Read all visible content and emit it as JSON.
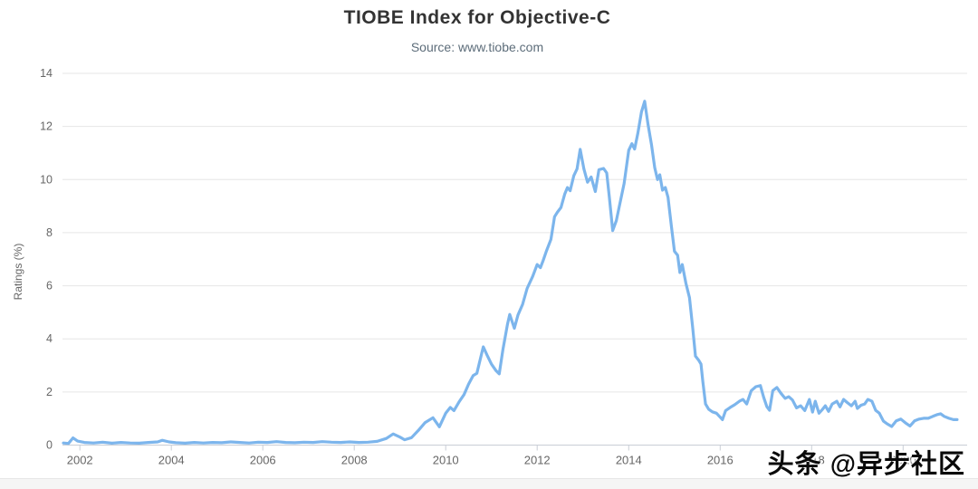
{
  "watermark": {
    "text": "头条 @异步社区"
  },
  "chart_data": {
    "type": "line",
    "title": "TIOBE Index for Objective-C",
    "subtitle": "Source: www.tiobe.com",
    "xlabel": "",
    "ylabel": "Ratings (%)",
    "grid": "horizontal-only",
    "legend": "none",
    "colors": {
      "line": "#7cb5ec",
      "grid": "#e6e6e6",
      "axis": "#c9ced6",
      "tick_label": "#666666",
      "title": "#333333",
      "subtitle": "#5d6d7a"
    },
    "x_axis": {
      "min": 2001.62,
      "max": 2021.4,
      "ticks": [
        2002,
        2004,
        2006,
        2008,
        2010,
        2012,
        2014,
        2016,
        2018,
        2020
      ]
    },
    "y_axis": {
      "min": 0,
      "max": 14,
      "ticks": [
        0,
        2,
        4,
        6,
        8,
        10,
        12,
        14
      ]
    },
    "series": [
      {
        "name": "Objective-C ratings (%)",
        "points": [
          [
            2001.64,
            0.08
          ],
          [
            2001.75,
            0.06
          ],
          [
            2001.85,
            0.27
          ],
          [
            2001.95,
            0.15
          ],
          [
            2002.1,
            0.1
          ],
          [
            2002.3,
            0.08
          ],
          [
            2002.5,
            0.11
          ],
          [
            2002.7,
            0.07
          ],
          [
            2002.9,
            0.1
          ],
          [
            2003.1,
            0.08
          ],
          [
            2003.3,
            0.07
          ],
          [
            2003.5,
            0.1
          ],
          [
            2003.7,
            0.12
          ],
          [
            2003.8,
            0.18
          ],
          [
            2003.95,
            0.12
          ],
          [
            2004.1,
            0.09
          ],
          [
            2004.3,
            0.07
          ],
          [
            2004.5,
            0.1
          ],
          [
            2004.7,
            0.08
          ],
          [
            2004.9,
            0.1
          ],
          [
            2005.1,
            0.09
          ],
          [
            2005.3,
            0.12
          ],
          [
            2005.5,
            0.1
          ],
          [
            2005.7,
            0.08
          ],
          [
            2005.9,
            0.11
          ],
          [
            2006.1,
            0.1
          ],
          [
            2006.3,
            0.13
          ],
          [
            2006.5,
            0.1
          ],
          [
            2006.7,
            0.09
          ],
          [
            2006.9,
            0.11
          ],
          [
            2007.1,
            0.1
          ],
          [
            2007.3,
            0.13
          ],
          [
            2007.5,
            0.11
          ],
          [
            2007.7,
            0.1
          ],
          [
            2007.9,
            0.12
          ],
          [
            2008.1,
            0.1
          ],
          [
            2008.3,
            0.11
          ],
          [
            2008.5,
            0.14
          ],
          [
            2008.7,
            0.25
          ],
          [
            2008.85,
            0.42
          ],
          [
            2009.0,
            0.3
          ],
          [
            2009.1,
            0.2
          ],
          [
            2009.25,
            0.28
          ],
          [
            2009.4,
            0.55
          ],
          [
            2009.55,
            0.85
          ],
          [
            2009.72,
            1.03
          ],
          [
            2009.86,
            0.69
          ],
          [
            2010.0,
            1.2
          ],
          [
            2010.1,
            1.42
          ],
          [
            2010.18,
            1.3
          ],
          [
            2010.3,
            1.65
          ],
          [
            2010.4,
            1.9
          ],
          [
            2010.5,
            2.3
          ],
          [
            2010.6,
            2.62
          ],
          [
            2010.68,
            2.7
          ],
          [
            2010.75,
            3.2
          ],
          [
            2010.82,
            3.7
          ],
          [
            2010.9,
            3.4
          ],
          [
            2011.0,
            3.05
          ],
          [
            2011.1,
            2.8
          ],
          [
            2011.17,
            2.68
          ],
          [
            2011.25,
            3.6
          ],
          [
            2011.35,
            4.55
          ],
          [
            2011.4,
            4.92
          ],
          [
            2011.5,
            4.4
          ],
          [
            2011.58,
            4.9
          ],
          [
            2011.68,
            5.3
          ],
          [
            2011.78,
            5.9
          ],
          [
            2011.9,
            6.35
          ],
          [
            2012.0,
            6.8
          ],
          [
            2012.07,
            6.68
          ],
          [
            2012.13,
            6.95
          ],
          [
            2012.2,
            7.3
          ],
          [
            2012.3,
            7.75
          ],
          [
            2012.38,
            8.6
          ],
          [
            2012.44,
            8.77
          ],
          [
            2012.52,
            8.95
          ],
          [
            2012.6,
            9.45
          ],
          [
            2012.66,
            9.7
          ],
          [
            2012.72,
            9.58
          ],
          [
            2012.8,
            10.15
          ],
          [
            2012.87,
            10.4
          ],
          [
            2012.94,
            11.14
          ],
          [
            2013.02,
            10.4
          ],
          [
            2013.1,
            9.9
          ],
          [
            2013.18,
            10.1
          ],
          [
            2013.27,
            9.55
          ],
          [
            2013.35,
            10.37
          ],
          [
            2013.45,
            10.42
          ],
          [
            2013.52,
            10.25
          ],
          [
            2013.58,
            9.3
          ],
          [
            2013.65,
            8.08
          ],
          [
            2013.73,
            8.45
          ],
          [
            2013.82,
            9.2
          ],
          [
            2013.9,
            9.85
          ],
          [
            2014.0,
            11.1
          ],
          [
            2014.07,
            11.35
          ],
          [
            2014.13,
            11.15
          ],
          [
            2014.2,
            11.75
          ],
          [
            2014.28,
            12.55
          ],
          [
            2014.35,
            12.95
          ],
          [
            2014.42,
            12.1
          ],
          [
            2014.5,
            11.3
          ],
          [
            2014.57,
            10.45
          ],
          [
            2014.63,
            10.0
          ],
          [
            2014.68,
            10.18
          ],
          [
            2014.74,
            9.6
          ],
          [
            2014.8,
            9.7
          ],
          [
            2014.86,
            9.33
          ],
          [
            2014.93,
            8.3
          ],
          [
            2015.0,
            7.3
          ],
          [
            2015.07,
            7.15
          ],
          [
            2015.12,
            6.5
          ],
          [
            2015.17,
            6.8
          ],
          [
            2015.25,
            6.1
          ],
          [
            2015.33,
            5.55
          ],
          [
            2015.4,
            4.4
          ],
          [
            2015.46,
            3.35
          ],
          [
            2015.53,
            3.2
          ],
          [
            2015.58,
            3.05
          ],
          [
            2015.62,
            2.4
          ],
          [
            2015.68,
            1.55
          ],
          [
            2015.75,
            1.35
          ],
          [
            2015.83,
            1.25
          ],
          [
            2015.92,
            1.2
          ],
          [
            2016.0,
            1.05
          ],
          [
            2016.05,
            0.96
          ],
          [
            2016.12,
            1.3
          ],
          [
            2016.22,
            1.42
          ],
          [
            2016.32,
            1.52
          ],
          [
            2016.42,
            1.65
          ],
          [
            2016.5,
            1.72
          ],
          [
            2016.58,
            1.55
          ],
          [
            2016.68,
            2.05
          ],
          [
            2016.78,
            2.2
          ],
          [
            2016.88,
            2.24
          ],
          [
            2016.95,
            1.8
          ],
          [
            2017.02,
            1.45
          ],
          [
            2017.08,
            1.31
          ],
          [
            2017.15,
            2.05
          ],
          [
            2017.24,
            2.17
          ],
          [
            2017.33,
            1.95
          ],
          [
            2017.42,
            1.76
          ],
          [
            2017.5,
            1.82
          ],
          [
            2017.58,
            1.7
          ],
          [
            2017.67,
            1.4
          ],
          [
            2017.76,
            1.48
          ],
          [
            2017.85,
            1.3
          ],
          [
            2017.95,
            1.72
          ],
          [
            2018.02,
            1.24
          ],
          [
            2018.08,
            1.65
          ],
          [
            2018.16,
            1.2
          ],
          [
            2018.24,
            1.35
          ],
          [
            2018.3,
            1.48
          ],
          [
            2018.37,
            1.27
          ],
          [
            2018.45,
            1.55
          ],
          [
            2018.55,
            1.65
          ],
          [
            2018.62,
            1.44
          ],
          [
            2018.7,
            1.72
          ],
          [
            2018.78,
            1.6
          ],
          [
            2018.87,
            1.48
          ],
          [
            2018.95,
            1.65
          ],
          [
            2019.0,
            1.38
          ],
          [
            2019.08,
            1.5
          ],
          [
            2019.16,
            1.55
          ],
          [
            2019.23,
            1.72
          ],
          [
            2019.32,
            1.65
          ],
          [
            2019.4,
            1.31
          ],
          [
            2019.48,
            1.2
          ],
          [
            2019.57,
            0.9
          ],
          [
            2019.65,
            0.8
          ],
          [
            2019.75,
            0.7
          ],
          [
            2019.85,
            0.91
          ],
          [
            2019.95,
            0.98
          ],
          [
            2020.05,
            0.84
          ],
          [
            2020.15,
            0.72
          ],
          [
            2020.25,
            0.91
          ],
          [
            2020.35,
            0.98
          ],
          [
            2020.45,
            1.01
          ],
          [
            2020.55,
            1.01
          ],
          [
            2020.65,
            1.08
          ],
          [
            2020.75,
            1.15
          ],
          [
            2020.82,
            1.18
          ],
          [
            2020.9,
            1.08
          ],
          [
            2021.0,
            1.01
          ],
          [
            2021.1,
            0.96
          ],
          [
            2021.18,
            0.96
          ]
        ]
      }
    ]
  }
}
